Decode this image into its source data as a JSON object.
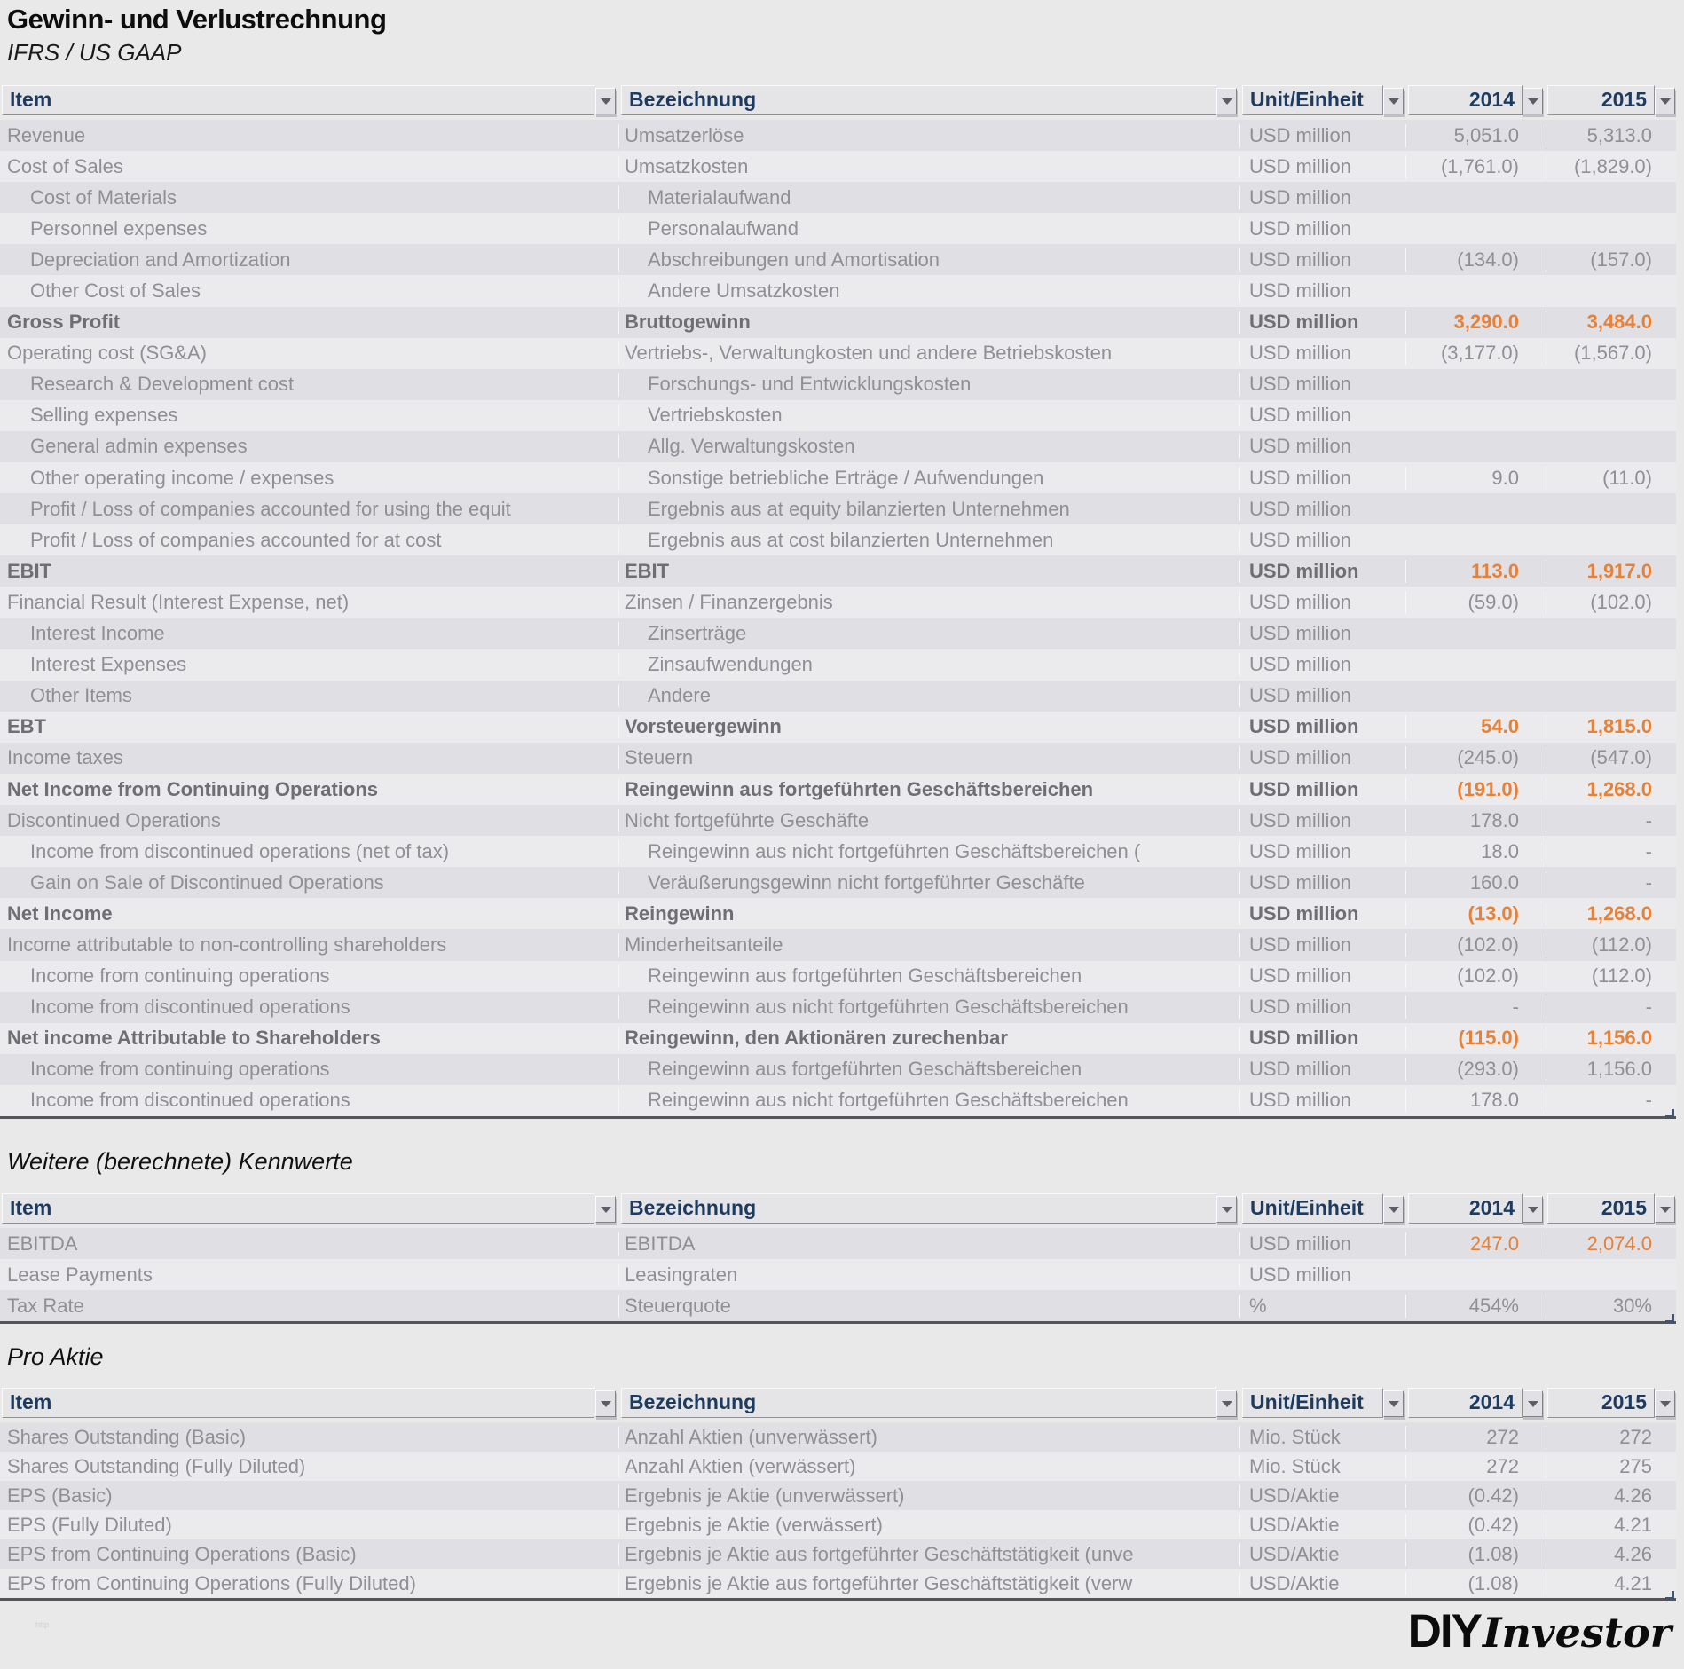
{
  "title": "Gewinn- und Verlustrechnung",
  "subtitle": "IFRS / US GAAP",
  "columns": {
    "item": "Item",
    "bez": "Bezeichnung",
    "unit": "Unit/Einheit",
    "y2014": "2014",
    "y2015": "2015"
  },
  "icons": {
    "filter": "▼",
    "comment_flag": "red-triangle",
    "resize_handle": "corner-drag"
  },
  "colors": {
    "accent_orange": "#e58138",
    "header_text": "#1d3a5f",
    "comment_flag_red": "#c00000",
    "band_dark": "#e0e0e4",
    "band_light": "#ebebee"
  },
  "sections": [
    {
      "heading": null,
      "rows": [
        {
          "it": "Revenue",
          "bz": "Umsatzerlöse",
          "un": "USD million",
          "a": "5,051.0",
          "b": "5,313.0",
          "f": ""
        },
        {
          "it": "Cost of Sales",
          "bz": "Umsatzkosten",
          "un": "USD million",
          "a": "(1,761.0)",
          "b": "(1,829.0)",
          "f": ""
        },
        {
          "it": "Cost of Materials",
          "bz": "Materialaufwand",
          "un": "USD million",
          "a": "",
          "b": "",
          "f": "i"
        },
        {
          "it": "Personnel expenses",
          "bz": "Personalaufwand",
          "un": "USD million",
          "a": "",
          "b": "",
          "f": "i"
        },
        {
          "it": "Depreciation and Amortization",
          "bz": "Abschreibungen und Amortisation",
          "un": "USD million",
          "a": "(134.0)",
          "b": "(157.0)",
          "f": "i"
        },
        {
          "it": "Other Cost of Sales",
          "bz": "Andere Umsatzkosten",
          "un": "USD million",
          "a": "",
          "b": "",
          "f": "i"
        },
        {
          "it": "Gross Profit",
          "bz": "Bruttogewinn",
          "un": "USD million",
          "a": "3,290.0",
          "b": "3,484.0",
          "f": "B"
        },
        {
          "it": "Operating cost (SG&A)",
          "bz": "Vertriebs-, Verwaltungkosten und andere Betriebskosten",
          "un": "USD million",
          "a": "(3,177.0)",
          "b": "(1,567.0)",
          "f": ""
        },
        {
          "it": "Research & Development cost",
          "bz": "Forschungs- und Entwicklungskosten",
          "un": "USD million",
          "a": "",
          "b": "",
          "f": "i"
        },
        {
          "it": "Selling expenses",
          "bz": "Vertriebskosten",
          "un": "USD million",
          "a": "",
          "b": "",
          "f": "i"
        },
        {
          "it": "General admin expenses",
          "bz": "Allg. Verwaltungskosten",
          "un": "USD million",
          "a": "",
          "b": "",
          "f": "i"
        },
        {
          "it": "Other operating income / expenses",
          "bz": "Sonstige betriebliche Erträge / Aufwendungen",
          "un": "USD million",
          "a": "9.0",
          "b": "(11.0)",
          "f": "i"
        },
        {
          "it": "Profit / Loss of companies accounted for using the equit",
          "bz": "Ergebnis aus at equity bilanzierten Unternehmen",
          "un": "USD million",
          "a": "",
          "b": "",
          "f": "i"
        },
        {
          "it": "Profit / Loss of companies accounted for at cost",
          "bz": "Ergebnis aus at cost bilanzierten Unternehmen",
          "un": "USD million",
          "a": "",
          "b": "",
          "f": "i"
        },
        {
          "it": "EBIT",
          "bz": "EBIT",
          "un": "USD million",
          "a": "113.0",
          "b": "1,917.0",
          "f": "B"
        },
        {
          "it": "Financial Result (Interest Expense, net)",
          "bz": "Zinsen / Finanzergebnis",
          "un": "USD million",
          "a": "(59.0)",
          "b": "(102.0)",
          "f": ""
        },
        {
          "it": "Interest Income",
          "bz": "Zinserträge",
          "un": "USD million",
          "a": "",
          "b": "",
          "f": "i"
        },
        {
          "it": "Interest Expenses",
          "bz": "Zinsaufwendungen",
          "un": "USD million",
          "a": "",
          "b": "",
          "f": "i"
        },
        {
          "it": "Other Items",
          "bz": "Andere",
          "un": "USD million",
          "a": "",
          "b": "",
          "f": "i"
        },
        {
          "it": "EBT",
          "bz": "Vorsteuergewinn",
          "un": "USD million",
          "a": "54.0",
          "b": "1,815.0",
          "f": "B"
        },
        {
          "it": "Income taxes",
          "bz": "Steuern",
          "un": "USD million",
          "a": "(245.0)",
          "b": "(547.0)",
          "f": ""
        },
        {
          "it": "Net Income from Continuing Operations",
          "bz": "Reingewinn aus fortgeführten Geschäftsbereichen",
          "un": "USD million",
          "a": "(191.0)",
          "b": "1,268.0",
          "f": "B"
        },
        {
          "it": "Discontinued Operations",
          "bz": "Nicht fortgeführte Geschäfte",
          "un": "USD million",
          "a": "178.0",
          "b": "-",
          "f": ""
        },
        {
          "it": "Income from discontinued operations (net of tax)",
          "bz": "Reingewinn aus nicht fortgeführten Geschäftsbereichen (",
          "un": "USD million",
          "a": "18.0",
          "b": "-",
          "f": "i"
        },
        {
          "it": "Gain on Sale of Discontinued Operations",
          "bz": "Veräußerungsgewinn nicht fortgeführter Geschäfte",
          "un": "USD million",
          "a": "160.0",
          "b": "-",
          "f": "i"
        },
        {
          "it": "Net Income",
          "bz": "Reingewinn",
          "un": "USD million",
          "a": "(13.0)",
          "b": "1,268.0",
          "f": "B"
        },
        {
          "it": "Income attributable to non-controlling shareholders",
          "bz": "Minderheitsanteile",
          "un": "USD million",
          "a": "(102.0)",
          "b": "(112.0)",
          "f": "c"
        },
        {
          "it": "Income from continuing operations",
          "bz": "Reingewinn aus fortgeführten Geschäftsbereichen",
          "un": "USD million",
          "a": "(102.0)",
          "b": "(112.0)",
          "f": "i"
        },
        {
          "it": "Income from discontinued operations",
          "bz": "Reingewinn aus nicht fortgeführten Geschäftsbereichen",
          "un": "USD million",
          "a": "-",
          "b": "-",
          "f": "i"
        },
        {
          "it": "Net income Attributable to Shareholders",
          "bz": "Reingewinn, den Aktionären zurechenbar",
          "un": "USD million",
          "a": "(115.0)",
          "b": "1,156.0",
          "f": "B"
        },
        {
          "it": "Income from continuing operations",
          "bz": "Reingewinn aus fortgeführten Geschäftsbereichen",
          "un": "USD million",
          "a": "(293.0)",
          "b": "1,156.0",
          "f": "i"
        },
        {
          "it": "Income from discontinued operations",
          "bz": "Reingewinn aus nicht fortgeführten Geschäftsbereichen",
          "un": "USD million",
          "a": "178.0",
          "b": "-",
          "f": "i"
        }
      ]
    },
    {
      "heading": "Weitere (berechnete) Kennwerte",
      "rows": [
        {
          "it": "EBITDA",
          "bz": "EBITDA",
          "un": "USD million",
          "a": "247.0",
          "b": "2,074.0",
          "f": "o"
        },
        {
          "it": "Lease Payments",
          "bz": "Leasingraten",
          "un": "USD million",
          "a": "",
          "b": "",
          "f": ""
        },
        {
          "it": "Tax Rate",
          "bz": "Steuerquote",
          "un": "%",
          "a": "454%",
          "b": "30%",
          "f": ""
        }
      ]
    },
    {
      "heading": "Pro Aktie",
      "rows": [
        {
          "it": "Shares Outstanding (Basic)",
          "bz": "Anzahl Aktien (unverwässert)",
          "un": "Mio. Stück",
          "a": "272",
          "b": "272",
          "f": ""
        },
        {
          "it": "Shares Outstanding (Fully Diluted)",
          "bz": "Anzahl Aktien (verwässert)",
          "un": "Mio. Stück",
          "a": "272",
          "b": "275",
          "f": ""
        },
        {
          "it": "EPS (Basic)",
          "bz": "Ergebnis je Aktie (unverwässert)",
          "un": "USD/Aktie",
          "a": "(0.42)",
          "b": "4.26",
          "f": ""
        },
        {
          "it": "EPS (Fully Diluted)",
          "bz": "Ergebnis je Aktie (verwässert)",
          "un": "USD/Aktie",
          "a": "(0.42)",
          "b": "4.21",
          "f": ""
        },
        {
          "it": "EPS from Continuing Operations (Basic)",
          "bz": "Ergebnis je Aktie aus fortgeführter Geschäftstätigkeit (unve",
          "un": "USD/Aktie",
          "a": "(1.08)",
          "b": "4.26",
          "f": ""
        },
        {
          "it": "EPS from Continuing Operations (Fully Diluted)",
          "bz": "Ergebnis je Aktie aus fortgeführter Geschäftstätigkeit (verw",
          "un": "USD/Aktie",
          "a": "(1.08)",
          "b": "4.21",
          "f": ""
        }
      ]
    }
  ],
  "footer": {
    "logo_bold": "DIY",
    "logo_italic": "Investor",
    "faint_text": "http"
  }
}
